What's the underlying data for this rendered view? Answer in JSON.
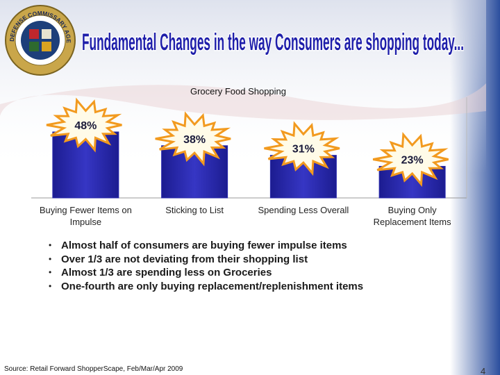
{
  "slide": {
    "title": "Fundamental Changes in the way Consumers are shopping today...",
    "logo_text": "DEFENSE COMMISSARY AGENCY",
    "bullets": [
      "Almost half of consumers are buying fewer impulse items",
      "Over 1/3 are not deviating from their shopping list",
      "Almost 1/3 are spending less on Groceries",
      "One-fourth are only buying replacement/replenishment items"
    ],
    "source": "Source: Retail Forward ShopperScape, Feb/Mar/Apr 2009",
    "page_number": "4"
  },
  "chart_data": {
    "type": "bar",
    "title": "Grocery Food Shopping",
    "categories": [
      "Buying Fewer Items on Impulse",
      "Sticking to List",
      "Spending Less Overall",
      "Buying Only Replacement Items"
    ],
    "values": [
      48,
      38,
      31,
      23
    ],
    "value_labels": [
      "48%",
      "38%",
      "31%",
      "23%"
    ],
    "color": "#2a2aae"
  }
}
